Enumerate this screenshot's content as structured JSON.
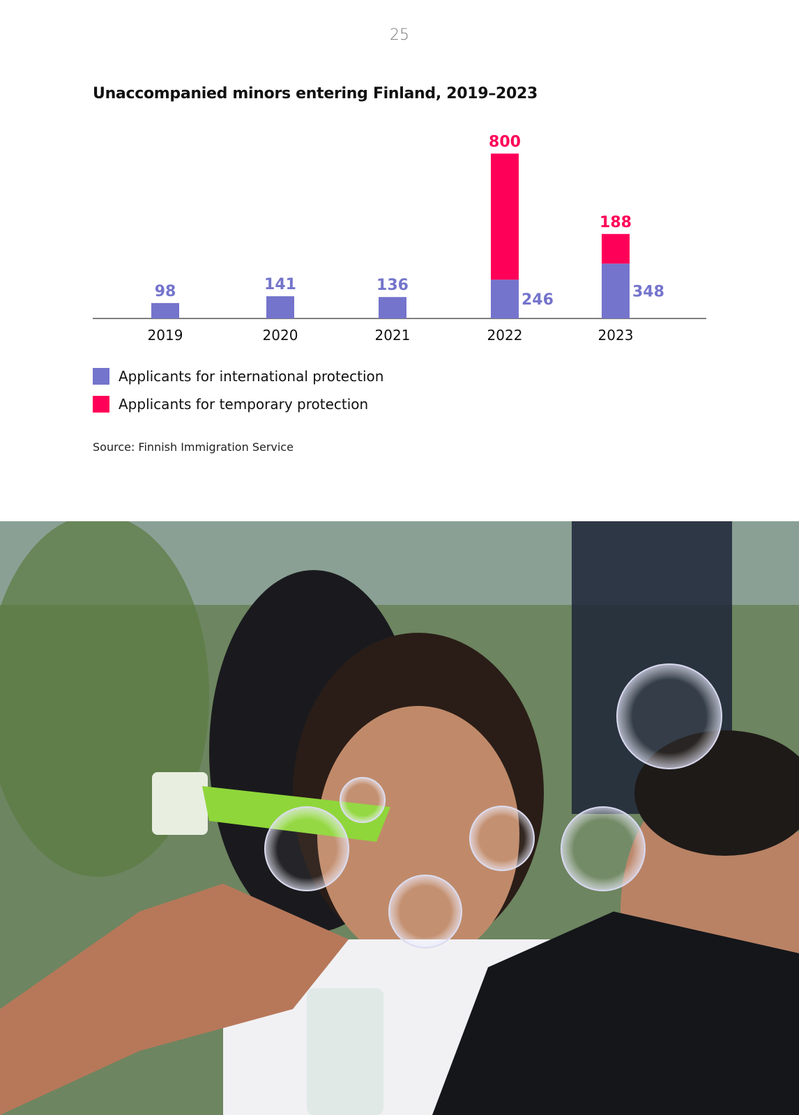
{
  "page": {
    "number": "25"
  },
  "chart_data": {
    "type": "bar",
    "title": "Unaccompanied minors entering Finland, 2019–2023",
    "categories": [
      "2019",
      "2020",
      "2021",
      "2022",
      "2023"
    ],
    "series": [
      {
        "name": "Applicants for international protection",
        "color": "#7474cc",
        "values": [
          98,
          141,
          136,
          246,
          348
        ]
      },
      {
        "name": "Applicants for temporary protection",
        "color": "#ff0058",
        "values": [
          null,
          null,
          null,
          800,
          188
        ]
      }
    ],
    "stacked": true,
    "legend_position": "bottom-left",
    "grid": false
  },
  "source": "Source: Finnish Immigration Service",
  "photo": {
    "description_icon": "photo-image"
  }
}
